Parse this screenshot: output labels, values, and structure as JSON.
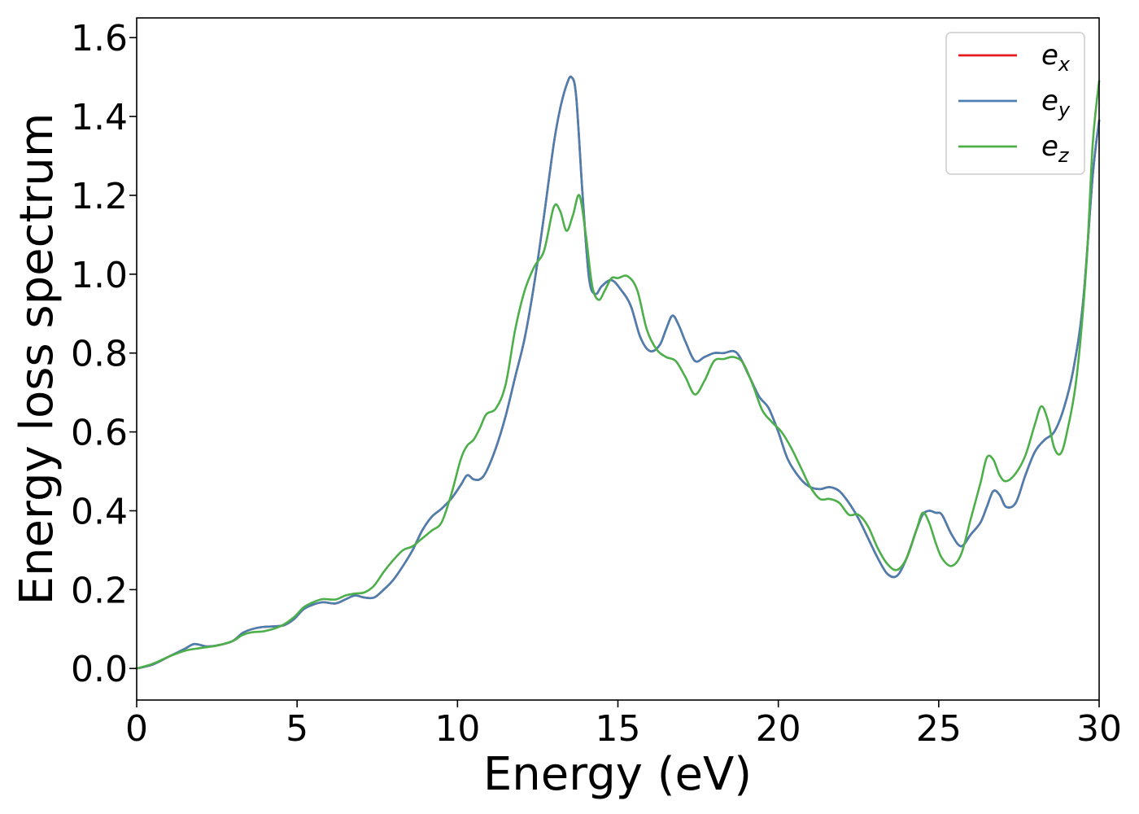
{
  "chart_data": {
    "type": "line",
    "title": "",
    "xlabel": "Energy (eV)",
    "ylabel": "Energy loss spectrum",
    "xlim": [
      0,
      30
    ],
    "ylim": [
      -0.08,
      1.65
    ],
    "xticks": [
      0,
      5,
      10,
      15,
      20,
      25,
      30
    ],
    "xtick_labels": [
      "0",
      "5",
      "10",
      "15",
      "20",
      "25",
      "30"
    ],
    "yticks": [
      0.0,
      0.2,
      0.4,
      0.6,
      0.8,
      1.0,
      1.2,
      1.4,
      1.6
    ],
    "ytick_labels": [
      "0.0",
      "0.2",
      "0.4",
      "0.6",
      "0.8",
      "1.0",
      "1.2",
      "1.4",
      "1.6"
    ],
    "grid": false,
    "legend_position": "top-right",
    "series": [
      {
        "name": "e_x",
        "legend_base": "e",
        "legend_sub": "x",
        "color": "#e41a1c",
        "x": [
          0,
          0.5,
          1,
          1.5,
          1.8,
          2.2,
          2.6,
          3.0,
          3.3,
          3.6,
          3.9,
          4.3,
          4.6,
          4.9,
          5.2,
          5.5,
          5.8,
          6.2,
          6.5,
          6.8,
          7.1,
          7.4,
          7.7,
          8.0,
          8.3,
          8.6,
          8.9,
          9.2,
          9.5,
          9.8,
          10.1,
          10.3,
          10.5,
          10.7,
          10.9,
          11.2,
          11.5,
          11.8,
          12.1,
          12.4,
          12.7,
          13.0,
          13.2,
          13.4,
          13.55,
          13.7,
          13.9,
          14.1,
          14.3,
          14.5,
          14.8,
          15.1,
          15.4,
          15.7,
          16.0,
          16.3,
          16.5,
          16.7,
          16.9,
          17.1,
          17.4,
          17.7,
          18.0,
          18.3,
          18.6,
          18.8,
          19.1,
          19.4,
          19.7,
          20.0,
          20.3,
          20.7,
          21.0,
          21.3,
          21.6,
          21.9,
          22.2,
          22.5,
          22.8,
          23.1,
          23.4,
          23.7,
          24.0,
          24.3,
          24.5,
          24.7,
          24.9,
          25.1,
          25.4,
          25.7,
          26.0,
          26.3,
          26.5,
          26.7,
          26.9,
          27.1,
          27.4,
          27.7,
          28.0,
          28.3,
          28.6,
          28.9,
          29.2,
          29.5,
          29.8,
          30.0
        ],
        "y": [
          0.0,
          0.01,
          0.03,
          0.05,
          0.062,
          0.056,
          0.06,
          0.07,
          0.09,
          0.1,
          0.105,
          0.107,
          0.11,
          0.125,
          0.15,
          0.162,
          0.168,
          0.165,
          0.175,
          0.185,
          0.18,
          0.18,
          0.2,
          0.225,
          0.26,
          0.3,
          0.35,
          0.385,
          0.405,
          0.43,
          0.465,
          0.49,
          0.48,
          0.48,
          0.5,
          0.56,
          0.64,
          0.74,
          0.84,
          0.98,
          1.15,
          1.33,
          1.42,
          1.48,
          1.5,
          1.45,
          1.2,
          0.99,
          0.95,
          0.97,
          0.985,
          0.96,
          0.92,
          0.84,
          0.805,
          0.82,
          0.86,
          0.895,
          0.87,
          0.83,
          0.78,
          0.79,
          0.8,
          0.8,
          0.805,
          0.79,
          0.74,
          0.69,
          0.66,
          0.6,
          0.53,
          0.48,
          0.46,
          0.455,
          0.46,
          0.45,
          0.42,
          0.38,
          0.33,
          0.28,
          0.24,
          0.235,
          0.28,
          0.35,
          0.39,
          0.4,
          0.395,
          0.39,
          0.34,
          0.31,
          0.34,
          0.37,
          0.41,
          0.45,
          0.44,
          0.41,
          0.42,
          0.49,
          0.55,
          0.58,
          0.6,
          0.66,
          0.76,
          0.93,
          1.25,
          1.39
        ]
      },
      {
        "name": "e_y",
        "legend_base": "e",
        "legend_sub": "y",
        "color": "#4a7fb0",
        "x": [
          0,
          0.5,
          1,
          1.5,
          1.8,
          2.2,
          2.6,
          3.0,
          3.3,
          3.6,
          3.9,
          4.3,
          4.6,
          4.9,
          5.2,
          5.5,
          5.8,
          6.2,
          6.5,
          6.8,
          7.1,
          7.4,
          7.7,
          8.0,
          8.3,
          8.6,
          8.9,
          9.2,
          9.5,
          9.8,
          10.1,
          10.3,
          10.5,
          10.7,
          10.9,
          11.2,
          11.5,
          11.8,
          12.1,
          12.4,
          12.7,
          13.0,
          13.2,
          13.4,
          13.55,
          13.7,
          13.9,
          14.1,
          14.3,
          14.5,
          14.8,
          15.1,
          15.4,
          15.7,
          16.0,
          16.3,
          16.5,
          16.7,
          16.9,
          17.1,
          17.4,
          17.7,
          18.0,
          18.3,
          18.6,
          18.8,
          19.1,
          19.4,
          19.7,
          20.0,
          20.3,
          20.7,
          21.0,
          21.3,
          21.6,
          21.9,
          22.2,
          22.5,
          22.8,
          23.1,
          23.4,
          23.7,
          24.0,
          24.3,
          24.5,
          24.7,
          24.9,
          25.1,
          25.4,
          25.7,
          26.0,
          26.3,
          26.5,
          26.7,
          26.9,
          27.1,
          27.4,
          27.7,
          28.0,
          28.3,
          28.6,
          28.9,
          29.2,
          29.5,
          29.8,
          30.0
        ],
        "y": [
          0.0,
          0.01,
          0.03,
          0.05,
          0.062,
          0.056,
          0.06,
          0.07,
          0.09,
          0.1,
          0.105,
          0.107,
          0.11,
          0.125,
          0.15,
          0.162,
          0.168,
          0.165,
          0.175,
          0.185,
          0.18,
          0.18,
          0.2,
          0.225,
          0.26,
          0.3,
          0.35,
          0.385,
          0.405,
          0.43,
          0.465,
          0.49,
          0.48,
          0.48,
          0.5,
          0.56,
          0.64,
          0.74,
          0.84,
          0.98,
          1.15,
          1.33,
          1.42,
          1.48,
          1.5,
          1.45,
          1.2,
          0.99,
          0.95,
          0.97,
          0.985,
          0.96,
          0.92,
          0.84,
          0.805,
          0.82,
          0.86,
          0.895,
          0.87,
          0.83,
          0.78,
          0.79,
          0.8,
          0.8,
          0.805,
          0.79,
          0.74,
          0.69,
          0.66,
          0.6,
          0.53,
          0.48,
          0.46,
          0.455,
          0.46,
          0.45,
          0.42,
          0.38,
          0.33,
          0.28,
          0.24,
          0.235,
          0.28,
          0.35,
          0.39,
          0.4,
          0.395,
          0.39,
          0.34,
          0.31,
          0.34,
          0.37,
          0.41,
          0.45,
          0.44,
          0.41,
          0.42,
          0.49,
          0.55,
          0.58,
          0.6,
          0.66,
          0.76,
          0.93,
          1.25,
          1.39
        ]
      },
      {
        "name": "e_z",
        "legend_base": "e",
        "legend_sub": "z",
        "color": "#4daf4a",
        "x": [
          0,
          0.5,
          1,
          1.5,
          2.0,
          2.5,
          3.0,
          3.3,
          3.6,
          4.0,
          4.5,
          4.9,
          5.2,
          5.5,
          5.8,
          6.2,
          6.5,
          6.8,
          7.1,
          7.4,
          7.7,
          8.0,
          8.3,
          8.6,
          8.9,
          9.2,
          9.5,
          9.8,
          10.1,
          10.3,
          10.5,
          10.7,
          10.9,
          11.2,
          11.5,
          11.8,
          12.1,
          12.4,
          12.7,
          13.0,
          13.2,
          13.4,
          13.6,
          13.8,
          14.0,
          14.2,
          14.4,
          14.6,
          14.8,
          15.0,
          15.3,
          15.6,
          15.9,
          16.2,
          16.5,
          16.8,
          17.1,
          17.4,
          17.7,
          18.0,
          18.3,
          18.6,
          18.9,
          19.2,
          19.5,
          19.8,
          20.1,
          20.4,
          20.7,
          21.0,
          21.3,
          21.6,
          21.9,
          22.2,
          22.5,
          22.8,
          23.1,
          23.4,
          23.7,
          24.0,
          24.3,
          24.5,
          24.7,
          24.9,
          25.1,
          25.4,
          25.7,
          26.0,
          26.3,
          26.5,
          26.7,
          26.9,
          27.1,
          27.4,
          27.7,
          28.0,
          28.2,
          28.4,
          28.6,
          28.8,
          29.0,
          29.3,
          29.6,
          29.8,
          30.0
        ],
        "y": [
          0.0,
          0.012,
          0.03,
          0.045,
          0.052,
          0.058,
          0.07,
          0.085,
          0.092,
          0.095,
          0.108,
          0.13,
          0.155,
          0.168,
          0.176,
          0.175,
          0.185,
          0.19,
          0.193,
          0.21,
          0.245,
          0.275,
          0.3,
          0.31,
          0.33,
          0.35,
          0.37,
          0.44,
          0.53,
          0.565,
          0.58,
          0.61,
          0.645,
          0.66,
          0.72,
          0.86,
          0.96,
          1.02,
          1.06,
          1.17,
          1.16,
          1.11,
          1.15,
          1.2,
          1.1,
          0.97,
          0.935,
          0.96,
          0.99,
          0.99,
          0.995,
          0.96,
          0.86,
          0.81,
          0.79,
          0.78,
          0.74,
          0.695,
          0.73,
          0.78,
          0.785,
          0.79,
          0.775,
          0.72,
          0.655,
          0.625,
          0.6,
          0.56,
          0.51,
          0.46,
          0.43,
          0.43,
          0.42,
          0.39,
          0.39,
          0.36,
          0.305,
          0.265,
          0.25,
          0.28,
          0.35,
          0.395,
          0.37,
          0.32,
          0.28,
          0.26,
          0.29,
          0.38,
          0.47,
          0.535,
          0.53,
          0.49,
          0.475,
          0.495,
          0.54,
          0.62,
          0.665,
          0.63,
          0.56,
          0.545,
          0.6,
          0.74,
          1.02,
          1.33,
          1.49
        ]
      }
    ]
  }
}
